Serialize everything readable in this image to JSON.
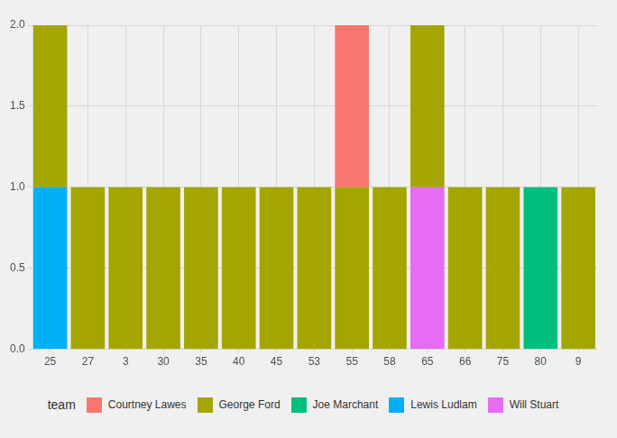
{
  "chart_data": {
    "type": "bar",
    "categories": [
      "25",
      "27",
      "3",
      "30",
      "35",
      "40",
      "45",
      "53",
      "55",
      "58",
      "65",
      "66",
      "75",
      "80",
      "9"
    ],
    "series": [
      {
        "name": "Courtney Lawes",
        "color": "#F8766D",
        "values": [
          null,
          null,
          null,
          null,
          null,
          null,
          null,
          null,
          1,
          null,
          null,
          null,
          null,
          null,
          null
        ]
      },
      {
        "name": "George Ford",
        "color": "#A3A500",
        "values": [
          1,
          1,
          1,
          1,
          1,
          1,
          1,
          1,
          1,
          1,
          1,
          1,
          1,
          null,
          1
        ]
      },
      {
        "name": "Joe Marchant",
        "color": "#00BF7D",
        "values": [
          null,
          null,
          null,
          null,
          null,
          null,
          null,
          null,
          null,
          null,
          null,
          null,
          null,
          1,
          null
        ]
      },
      {
        "name": "Lewis Ludlam",
        "color": "#00B0F6",
        "values": [
          1,
          null,
          null,
          null,
          null,
          null,
          null,
          null,
          null,
          null,
          null,
          null,
          null,
          null,
          null
        ]
      },
      {
        "name": "Will Stuart",
        "color": "#E76BF3",
        "values": [
          null,
          null,
          null,
          null,
          null,
          null,
          null,
          null,
          null,
          null,
          1,
          null,
          null,
          null,
          null
        ]
      }
    ],
    "ylim": [
      0,
      2
    ],
    "yticks": [
      {
        "value": 0,
        "label": "0.0"
      },
      {
        "value": 0.5,
        "label": "0.5"
      },
      {
        "value": 1,
        "label": "1.0"
      },
      {
        "value": 1.5,
        "label": "1.5"
      },
      {
        "value": 2,
        "label": "2.0"
      }
    ],
    "grid": true,
    "stacked": true,
    "legend": "bottom",
    "legend_title": "team"
  }
}
